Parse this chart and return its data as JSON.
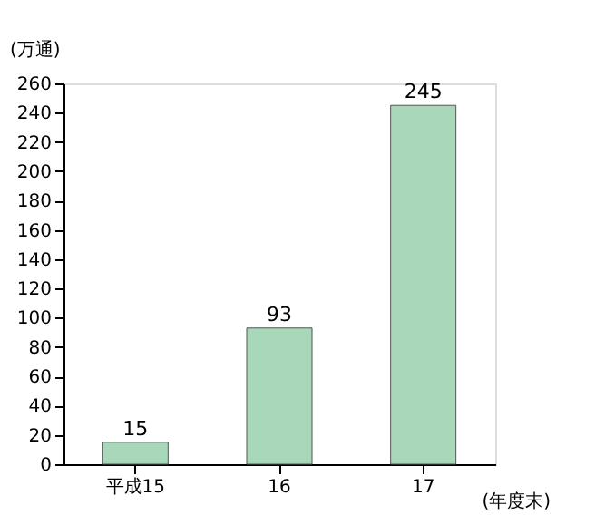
{
  "chart_data": {
    "type": "bar",
    "categories": [
      "平成15",
      "16",
      "17"
    ],
    "values": [
      15,
      93,
      245
    ],
    "color": "#a8d8b9",
    "ylabel": "(万通)",
    "xlabel": "(年度末)",
    "ylim": [
      0,
      260
    ],
    "yticks": [
      0,
      20,
      40,
      60,
      80,
      100,
      120,
      140,
      160,
      180,
      200,
      220,
      240,
      260
    ],
    "data_labels": true,
    "grid": false
  }
}
